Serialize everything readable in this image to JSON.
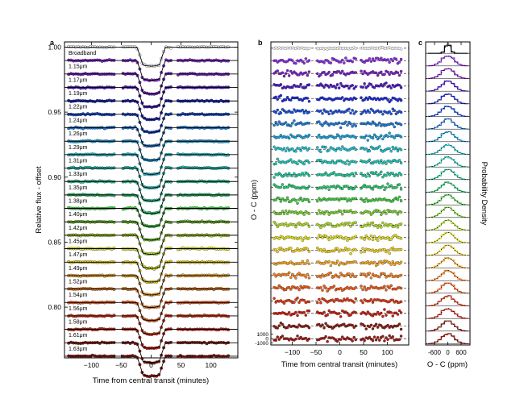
{
  "chart_data": [
    {
      "panel": "a",
      "type": "line",
      "title": "",
      "xlabel": "Time from central transit (minutes)",
      "ylabel": "Relative flux - offset",
      "xlim": [
        -145,
        145
      ],
      "ylim": [
        0.761,
        1.004
      ],
      "xticks": [
        -100,
        -50,
        0,
        50,
        100
      ],
      "yticks": [
        1.0,
        0.95,
        0.9,
        0.85,
        0.8
      ],
      "transit_depth": 0.0146,
      "light_curve_offsets": [
        0.0,
        0.0103,
        0.0207,
        0.031,
        0.0414,
        0.0517,
        0.062,
        0.0724,
        0.0827,
        0.093,
        0.1034,
        0.1137,
        0.124,
        0.1344,
        0.1447,
        0.155,
        0.1654,
        0.1757,
        0.186,
        0.1964,
        0.2067,
        0.217,
        0.2274,
        0.2377
      ],
      "series": [
        {
          "name": "Broadband",
          "color": "#ffffff"
        },
        {
          "name": "1.15μm",
          "color": "#8a2be2"
        },
        {
          "name": "1.17μm",
          "color": "#7b1fc9"
        },
        {
          "name": "1.19μm",
          "color": "#4b18c8"
        },
        {
          "name": "1.22μm",
          "color": "#1e2ad6"
        },
        {
          "name": "1.24μm",
          "color": "#1a4fe0"
        },
        {
          "name": "1.26μm",
          "color": "#1c7ad8"
        },
        {
          "name": "1.29μm",
          "color": "#1aa0d8"
        },
        {
          "name": "1.31μm",
          "color": "#20c0d0"
        },
        {
          "name": "1.33μm",
          "color": "#20c8b8"
        },
        {
          "name": "1.35μm",
          "color": "#20c89a"
        },
        {
          "name": "1.38μm",
          "color": "#28c870"
        },
        {
          "name": "1.40μm",
          "color": "#40cc40"
        },
        {
          "name": "1.42μm",
          "color": "#78d030"
        },
        {
          "name": "1.45μm",
          "color": "#b0dc28"
        },
        {
          "name": "1.47μm",
          "color": "#e0e020"
        },
        {
          "name": "1.49μm",
          "color": "#f0d020"
        },
        {
          "name": "1.52μm",
          "color": "#f5a820"
        },
        {
          "name": "1.54μm",
          "color": "#f58020"
        },
        {
          "name": "1.56μm",
          "color": "#ee5a18"
        },
        {
          "name": "1.58μm",
          "color": "#e03a14"
        },
        {
          "name": "1.61μm",
          "color": "#c81e10"
        },
        {
          "name": "1.63μm",
          "color": "#8a1e12"
        },
        {
          "name": "",
          "color": "#a01a14"
        }
      ]
    },
    {
      "panel": "b",
      "type": "scatter",
      "title": "",
      "xlabel": "Time from central transit (minutes)",
      "ylabel": "O - C (ppm)",
      "xlim": [
        -145,
        145
      ],
      "xticks": [
        -100,
        -50,
        0,
        50,
        100
      ],
      "yticks": [
        1000,
        0,
        -1000
      ],
      "ytick_labels": [
        "1000",
        "0",
        "-1000"
      ]
    },
    {
      "panel": "c",
      "type": "line",
      "title": "",
      "xlabel": "O - C (ppm)",
      "ylabel": "Probability Density",
      "xlim": [
        -1000,
        1000
      ],
      "xticks": [
        -600,
        0,
        600
      ]
    }
  ],
  "panel_labels": {
    "a": "a",
    "b": "b",
    "c": "c"
  },
  "a_xlabel": "Time from central transit (minutes)",
  "a_ylabel": "Relative flux - offset",
  "a_xtick_labels": [
    "−100",
    "−50",
    "0",
    "50",
    "100"
  ],
  "a_ytick_labels": [
    "1.00",
    "0.95",
    "0.90",
    "0.85",
    "0.80"
  ],
  "b_xlabel": "Time from central transit (minutes)",
  "b_ylabel": "O - C (ppm)",
  "b_xtick_labels": [
    "−100",
    "−50",
    "0",
    "50",
    "100"
  ],
  "b_ytick_labels": [
    "1000",
    "0",
    "-1000"
  ],
  "c_xlabel": "O - C (ppm)",
  "c_ylabel": "Probability Density",
  "c_xtick_labels": [
    "-600",
    "0",
    "600"
  ]
}
